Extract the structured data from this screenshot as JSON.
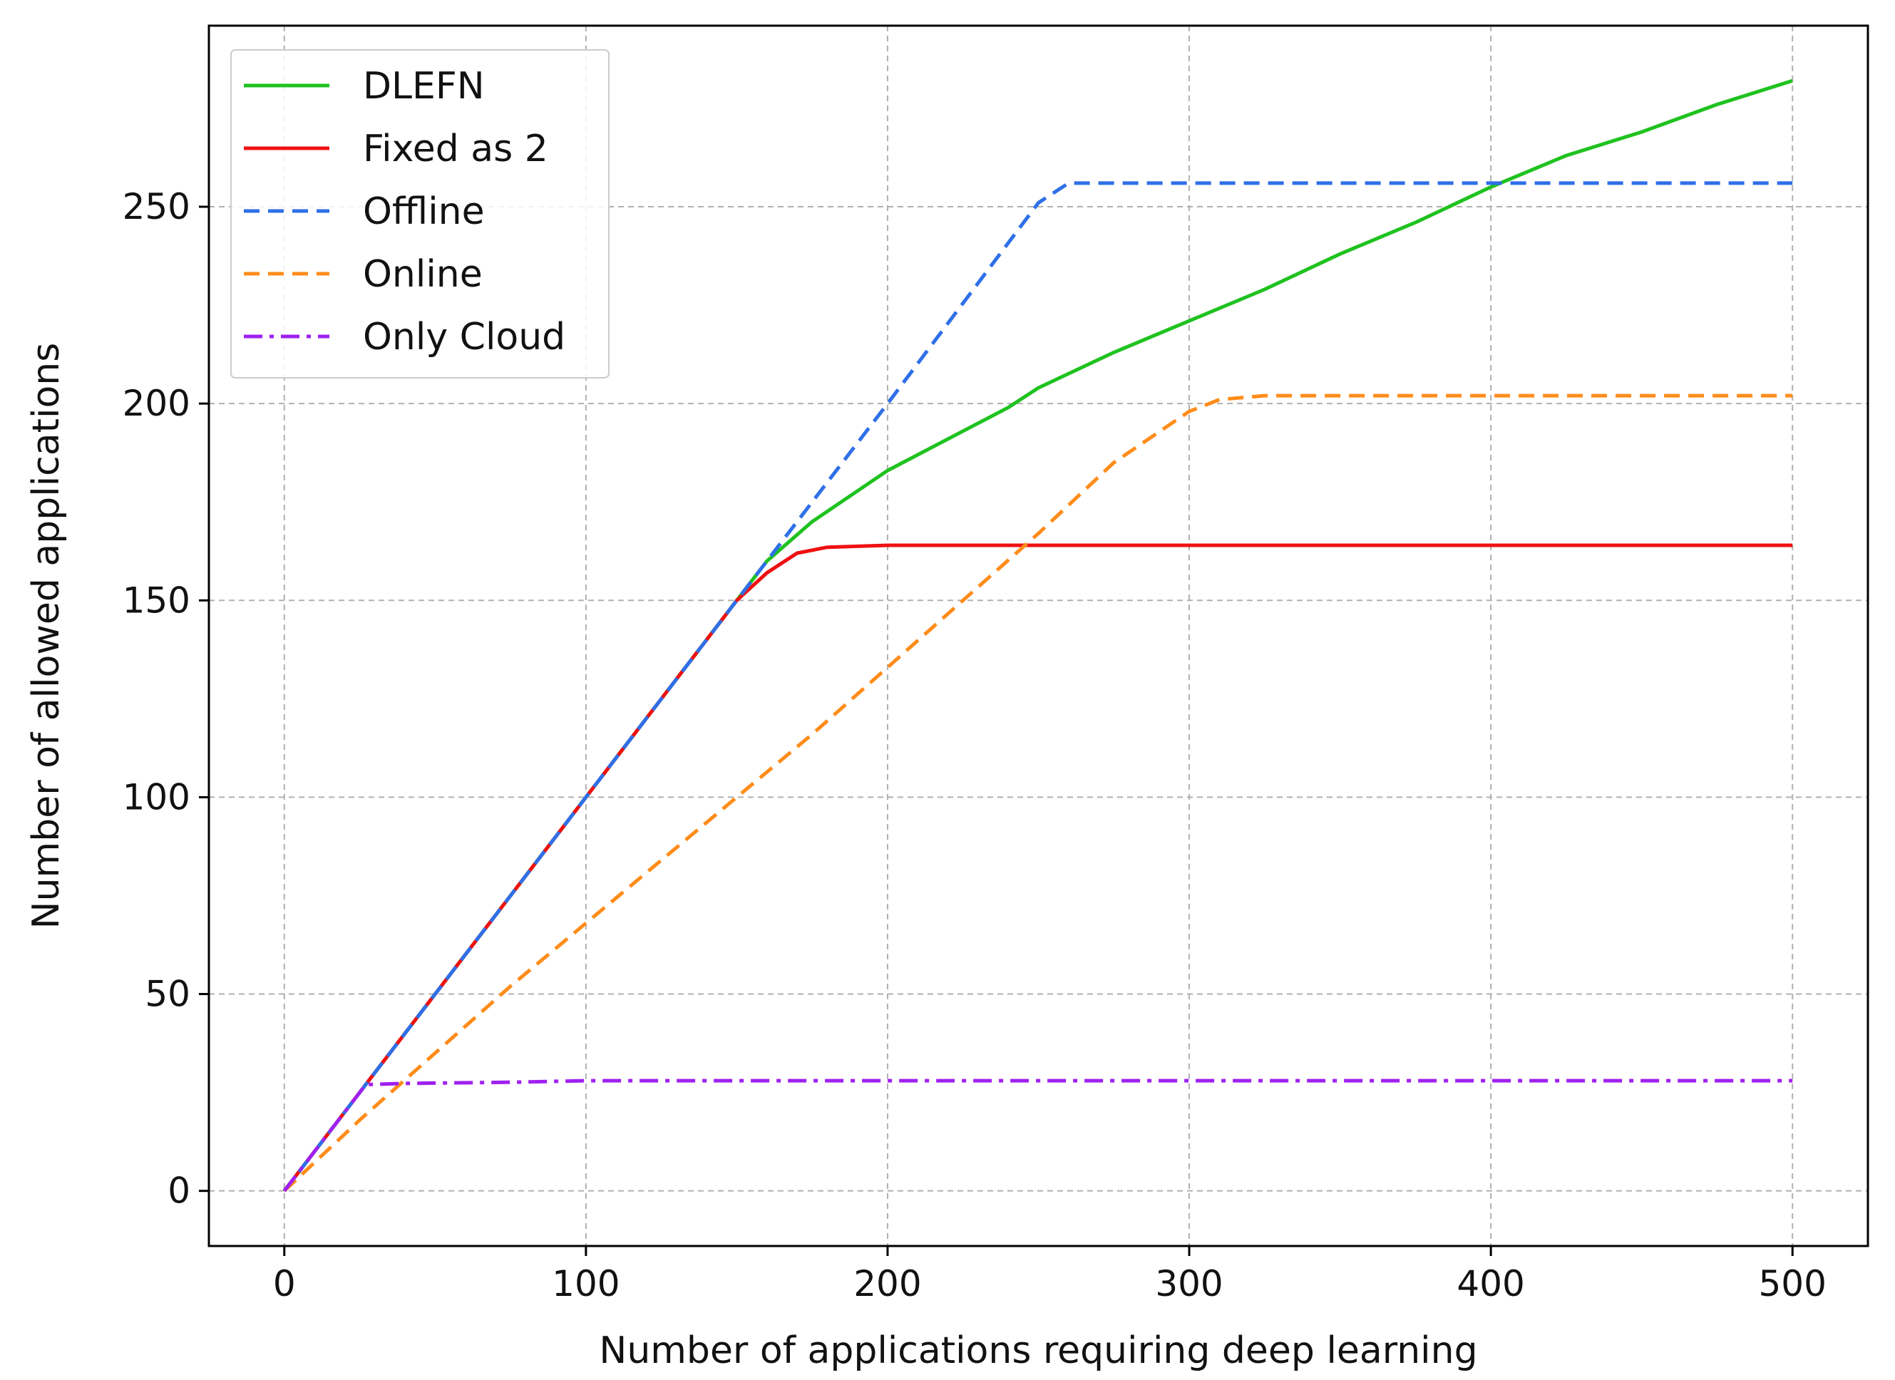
{
  "chart_data": {
    "type": "line",
    "xlabel": "Number of applications requiring deep learning",
    "ylabel": "Number of allowed applications",
    "xlim": [
      -25,
      525
    ],
    "ylim": [
      -14,
      296
    ],
    "xticks": [
      0,
      100,
      200,
      300,
      400,
      500
    ],
    "yticks": [
      0,
      50,
      100,
      150,
      200,
      250
    ],
    "grid": true,
    "legend_position": "top-left",
    "series": [
      {
        "name": "DLEFN",
        "color": "#1fc21f",
        "style": "solid",
        "x": [
          0,
          25,
          50,
          75,
          100,
          125,
          150,
          160,
          175,
          200,
          225,
          240,
          250,
          275,
          300,
          325,
          350,
          375,
          400,
          425,
          450,
          475,
          500
        ],
        "y": [
          0,
          25,
          50,
          75,
          100,
          125,
          150,
          160,
          170,
          183,
          193,
          199,
          204,
          213,
          221,
          229,
          238,
          246,
          255,
          263,
          269,
          276,
          282
        ]
      },
      {
        "name": "Fixed as 2",
        "color": "#ee1111",
        "style": "solid",
        "x": [
          0,
          25,
          50,
          75,
          100,
          125,
          150,
          160,
          170,
          180,
          200,
          250,
          300,
          400,
          500
        ],
        "y": [
          0,
          25,
          50,
          75,
          100,
          125,
          150,
          157,
          162,
          163.5,
          164,
          164,
          164,
          164,
          164
        ]
      },
      {
        "name": "Offline",
        "color": "#2f6fe8",
        "style": "dashed",
        "x": [
          0,
          50,
          100,
          150,
          200,
          250,
          260,
          300,
          400,
          500
        ],
        "y": [
          0,
          50,
          100,
          150,
          200,
          251,
          256,
          256,
          256,
          256
        ]
      },
      {
        "name": "Online",
        "color": "#ff8c1a",
        "style": "dashed",
        "x": [
          0,
          25,
          50,
          75,
          100,
          125,
          150,
          175,
          200,
          225,
          250,
          275,
          300,
          310,
          325,
          350,
          400,
          450,
          500
        ],
        "y": [
          0,
          18,
          35,
          52,
          68,
          84,
          100,
          116,
          133,
          150,
          167,
          185,
          198,
          201,
          202,
          202,
          202,
          202,
          202
        ]
      },
      {
        "name": "Only Cloud",
        "color": "#a020f0",
        "style": "dashdot",
        "x": [
          0,
          27,
          40,
          75,
          100,
          200,
          300,
          400,
          500
        ],
        "y": [
          0,
          27,
          27.3,
          27.6,
          28,
          28,
          28,
          28,
          28
        ]
      }
    ]
  }
}
